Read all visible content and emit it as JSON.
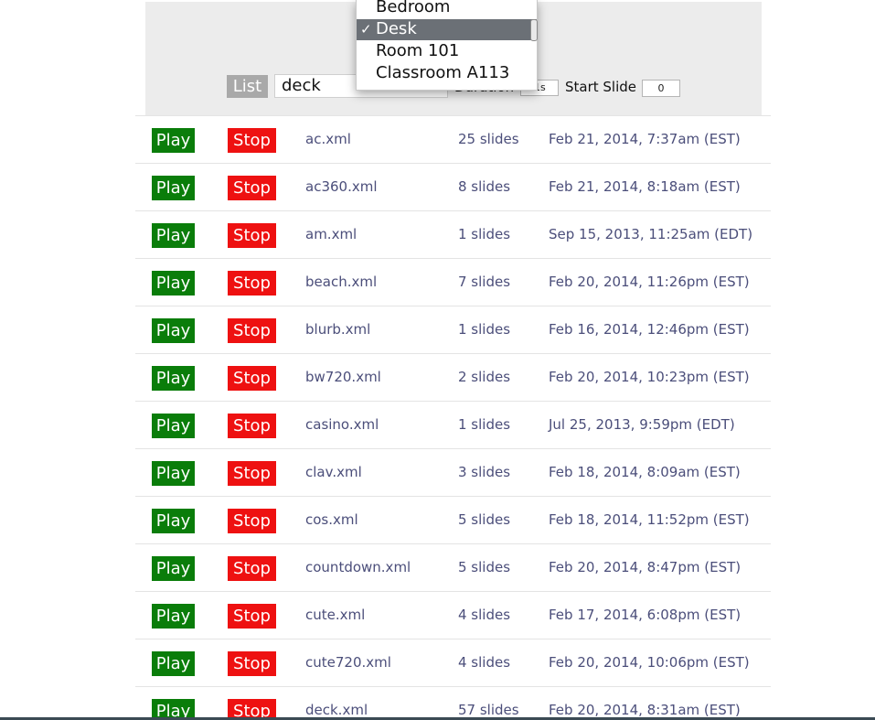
{
  "header": {
    "list_label": "List",
    "deck_select_value": "deck",
    "duration_label": "Duration",
    "duration_value": "1s",
    "start_slide_label": "Start Slide",
    "start_slide_value": "0"
  },
  "location_menu": {
    "options": [
      "Bedroom",
      "Desk",
      "Room 101",
      "Classroom A113"
    ],
    "selected": "Desk",
    "check_glyph": "✓"
  },
  "buttons": {
    "play_label": "Play",
    "stop_label": "Stop"
  },
  "colors": {
    "play": "#0a7d0a",
    "stop": "#ee1111",
    "text": "#4b4e7a"
  },
  "decks": [
    {
      "name": "ac.xml",
      "slides": "25 slides",
      "date": "Feb 21, 2014, 7:37am (EST)"
    },
    {
      "name": "ac360.xml",
      "slides": "8 slides",
      "date": "Feb 21, 2014, 8:18am (EST)"
    },
    {
      "name": "am.xml",
      "slides": "1 slides",
      "date": "Sep 15, 2013, 11:25am (EDT)"
    },
    {
      "name": "beach.xml",
      "slides": "7 slides",
      "date": "Feb 20, 2014, 11:26pm (EST)"
    },
    {
      "name": "blurb.xml",
      "slides": "1 slides",
      "date": "Feb 16, 2014, 12:46pm (EST)"
    },
    {
      "name": "bw720.xml",
      "slides": "2 slides",
      "date": "Feb 20, 2014, 10:23pm (EST)"
    },
    {
      "name": "casino.xml",
      "slides": "1 slides",
      "date": "Jul 25, 2013, 9:59pm (EDT)"
    },
    {
      "name": "clav.xml",
      "slides": "3 slides",
      "date": "Feb 18, 2014, 8:09am (EST)"
    },
    {
      "name": "cos.xml",
      "slides": "5 slides",
      "date": "Feb 18, 2014, 11:52pm (EST)"
    },
    {
      "name": "countdown.xml",
      "slides": "5 slides",
      "date": "Feb 20, 2014, 8:47pm (EST)"
    },
    {
      "name": "cute.xml",
      "slides": "4 slides",
      "date": "Feb 17, 2014, 6:08pm (EST)"
    },
    {
      "name": "cute720.xml",
      "slides": "4 slides",
      "date": "Feb 20, 2014, 10:06pm (EST)"
    },
    {
      "name": "deck.xml",
      "slides": "57 slides",
      "date": "Feb 20, 2014, 8:31am (EST)"
    }
  ]
}
